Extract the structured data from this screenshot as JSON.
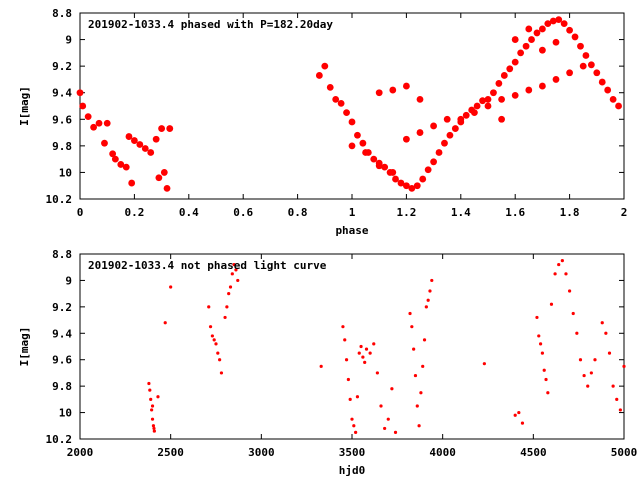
{
  "chart_data": [
    {
      "type": "scatter",
      "title": "201902-1033.4 phased with P=182.20day",
      "xlabel": "phase",
      "ylabel": "I[mag]",
      "xlim": [
        0,
        2
      ],
      "ylim": [
        10.2,
        8.8
      ],
      "y_inverted": true,
      "xticks": [
        "0",
        "0.2",
        "0.4",
        "0.6",
        "0.8",
        "1",
        "1.2",
        "1.4",
        "1.6",
        "1.8",
        "2"
      ],
      "yticks": [
        "8.8",
        "9",
        "9.2",
        "9.4",
        "9.6",
        "9.8",
        "10",
        "10.2"
      ],
      "grid": false,
      "marker_color": "#ff0000",
      "series": [
        {
          "x": [
            0.0,
            0.01,
            0.03,
            0.05,
            0.07,
            0.09,
            0.1,
            0.12,
            0.13,
            0.15,
            0.17,
            0.18,
            0.19,
            0.2,
            0.22,
            0.24,
            0.26,
            0.28,
            0.29,
            0.3,
            0.31,
            0.32,
            0.33,
            0.88,
            0.9,
            0.92,
            0.94,
            0.96,
            0.98,
            1.0,
            1.02,
            1.04,
            1.06,
            1.08,
            1.1,
            1.12,
            1.14,
            1.16,
            1.18,
            1.2,
            1.22,
            1.24,
            1.26,
            1.28,
            1.3,
            1.32,
            1.34,
            1.36,
            1.38,
            1.4,
            1.42,
            1.44,
            1.46,
            1.48,
            1.5,
            1.52,
            1.54,
            1.56,
            1.58,
            1.6,
            1.62,
            1.64,
            1.66,
            1.68,
            1.7,
            1.72,
            1.74,
            1.76,
            1.78,
            1.8,
            1.82,
            1.84,
            1.86,
            1.88,
            1.9,
            1.92,
            1.94,
            1.96,
            1.98,
            1.0,
            1.05,
            1.1,
            1.15,
            1.2,
            1.25,
            1.3,
            1.35,
            1.1,
            1.15,
            1.2,
            1.25,
            1.4,
            1.45,
            1.5,
            1.55,
            1.6,
            1.65,
            1.7,
            1.75,
            1.8,
            1.85,
            1.55,
            1.6,
            1.65,
            1.7,
            1.75
          ],
          "y": [
            9.4,
            9.5,
            9.58,
            9.66,
            9.63,
            9.78,
            9.63,
            9.86,
            9.9,
            9.94,
            9.96,
            9.73,
            10.08,
            9.76,
            9.79,
            9.82,
            9.85,
            9.75,
            10.04,
            9.67,
            10.0,
            10.12,
            9.67,
            9.27,
            9.2,
            9.36,
            9.45,
            9.48,
            9.55,
            9.62,
            9.72,
            9.78,
            9.85,
            9.9,
            9.93,
            9.96,
            10.0,
            10.05,
            10.08,
            10.1,
            10.12,
            10.1,
            10.05,
            9.98,
            9.92,
            9.85,
            9.78,
            9.72,
            9.67,
            9.62,
            9.57,
            9.53,
            9.5,
            9.46,
            9.45,
            9.4,
            9.33,
            9.27,
            9.22,
            9.17,
            9.1,
            9.05,
            9.0,
            8.95,
            8.92,
            8.88,
            8.86,
            8.85,
            8.88,
            8.93,
            8.98,
            9.05,
            9.12,
            9.19,
            9.25,
            9.32,
            9.38,
            9.45,
            9.5,
            9.8,
            9.85,
            9.95,
            10.0,
            9.75,
            9.7,
            9.65,
            9.6,
            9.4,
            9.38,
            9.35,
            9.45,
            9.6,
            9.55,
            9.5,
            9.45,
            9.42,
            9.38,
            9.35,
            9.3,
            9.25,
            9.2,
            9.6,
            9.0,
            8.92,
            9.08,
            9.02
          ]
        }
      ]
    },
    {
      "type": "scatter",
      "title": "201902-1033.4 not phased light curve",
      "xlabel": "hjd0",
      "ylabel": "I[mag]",
      "xlim": [
        2000,
        5000
      ],
      "ylim": [
        10.2,
        8.8
      ],
      "y_inverted": true,
      "xticks": [
        "2000",
        "2500",
        "3000",
        "3500",
        "4000",
        "4500",
        "5000"
      ],
      "yticks": [
        "8.8",
        "9",
        "9.2",
        "9.4",
        "9.6",
        "9.8",
        "10",
        "10.2"
      ],
      "grid": false,
      "marker_color": "#ff0000",
      "series": [
        {
          "x": [
            2380,
            2385,
            2390,
            2395,
            2400,
            2405,
            2410,
            2400,
            2408,
            2430,
            2470,
            2500,
            2710,
            2720,
            2730,
            2740,
            2750,
            2760,
            2770,
            2780,
            2800,
            2810,
            2820,
            2830,
            2840,
            2850,
            2860,
            2870,
            3330,
            3450,
            3460,
            3470,
            3480,
            3490,
            3500,
            3510,
            3520,
            3530,
            3540,
            3550,
            3560,
            3570,
            3580,
            3600,
            3620,
            3640,
            3660,
            3680,
            3700,
            3720,
            3740,
            3820,
            3830,
            3840,
            3850,
            3860,
            3870,
            3880,
            3890,
            3900,
            3910,
            3920,
            3930,
            3940,
            4230,
            4400,
            4420,
            4440,
            4520,
            4530,
            4540,
            4550,
            4560,
            4570,
            4580,
            4600,
            4620,
            4640,
            4660,
            4680,
            4700,
            4720,
            4740,
            4760,
            4780,
            4800,
            4820,
            4840,
            4880,
            4900,
            4920,
            4940,
            4960,
            4980,
            5000
          ],
          "y": [
            9.78,
            9.83,
            9.9,
            9.98,
            10.05,
            10.1,
            10.14,
            9.95,
            10.12,
            9.88,
            9.32,
            9.05,
            9.2,
            9.35,
            9.42,
            9.45,
            9.48,
            9.55,
            9.6,
            9.7,
            9.28,
            9.2,
            9.1,
            9.05,
            8.95,
            8.88,
            8.92,
            9.0,
            9.65,
            9.35,
            9.45,
            9.6,
            9.75,
            9.9,
            10.05,
            10.1,
            10.15,
            9.88,
            9.55,
            9.5,
            9.58,
            9.62,
            9.52,
            9.55,
            9.48,
            9.7,
            9.95,
            10.12,
            10.05,
            9.82,
            10.15,
            9.25,
            9.35,
            9.52,
            9.72,
            9.95,
            10.1,
            9.85,
            9.65,
            9.45,
            9.2,
            9.15,
            9.08,
            9.0,
            9.63,
            10.02,
            10.0,
            10.08,
            9.28,
            9.42,
            9.48,
            9.55,
            9.68,
            9.75,
            9.85,
            9.18,
            8.95,
            8.88,
            8.85,
            8.95,
            9.08,
            9.25,
            9.4,
            9.6,
            9.72,
            9.8,
            9.7,
            9.6,
            9.32,
            9.4,
            9.55,
            9.8,
            9.9,
            9.98,
            9.65
          ]
        }
      ]
    }
  ]
}
